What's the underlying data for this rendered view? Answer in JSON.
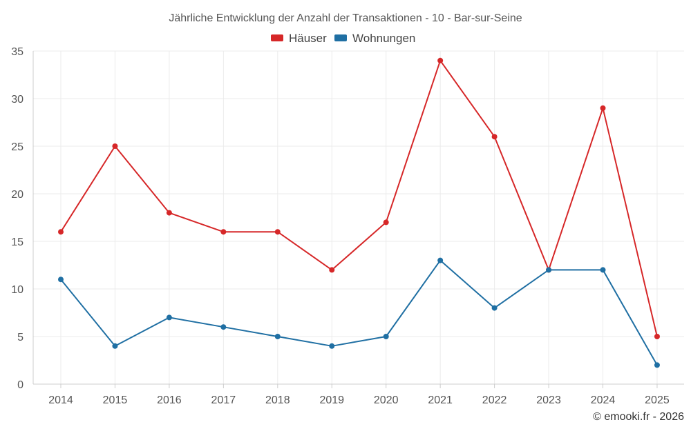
{
  "chart_data": {
    "type": "line",
    "title": "Jährliche Entwicklung der Anzahl der Transaktionen - 10 - Bar-sur-Seine",
    "categories": [
      "2014",
      "2015",
      "2016",
      "2017",
      "2018",
      "2019",
      "2020",
      "2021",
      "2022",
      "2023",
      "2024",
      "2025"
    ],
    "series": [
      {
        "name": "Häuser",
        "color": "#d62728",
        "values": [
          16,
          25,
          18,
          16,
          16,
          12,
          17,
          34,
          26,
          12,
          29,
          5
        ]
      },
      {
        "name": "Wohnungen",
        "color": "#1f6fa3",
        "values": [
          11,
          4,
          7,
          6,
          5,
          4,
          5,
          13,
          8,
          12,
          12,
          2
        ]
      }
    ],
    "yticks": [
      "0",
      "5",
      "10",
      "15",
      "20",
      "25",
      "30",
      "35"
    ],
    "ylim": [
      0,
      35
    ],
    "xlabel": "",
    "ylabel": "",
    "grid": true,
    "legend_position": "top-center"
  },
  "credit": "© emooki.fr - 2026"
}
